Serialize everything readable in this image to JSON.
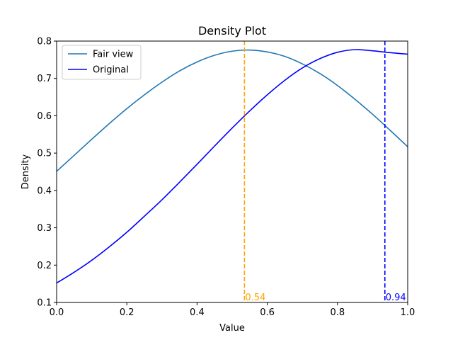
{
  "chart_data": {
    "type": "line",
    "title": "Density Plot",
    "xlabel": "Value",
    "ylabel": "Density",
    "xlim": [
      0,
      1
    ],
    "ylim": [
      0.1,
      0.8
    ],
    "xticks": [
      "0.0",
      "0.2",
      "0.4",
      "0.6",
      "0.8",
      "1.0"
    ],
    "yticks": [
      "0.1",
      "0.2",
      "0.3",
      "0.4",
      "0.5",
      "0.6",
      "0.7",
      "0.8"
    ],
    "grid": false,
    "legend_position": "top-left",
    "x": [
      0.0,
      0.05,
      0.1,
      0.15,
      0.2,
      0.25,
      0.3,
      0.35,
      0.4,
      0.45,
      0.5,
      0.55,
      0.6,
      0.65,
      0.7,
      0.75,
      0.8,
      0.85,
      0.9,
      0.95,
      1.0
    ],
    "series": [
      {
        "name": "Fair view",
        "color": "#1f77b4",
        "values": [
          0.451,
          0.494,
          0.537,
          0.579,
          0.619,
          0.656,
          0.69,
          0.72,
          0.744,
          0.762,
          0.773,
          0.776,
          0.771,
          0.759,
          0.739,
          0.713,
          0.681,
          0.644,
          0.604,
          0.561,
          0.517
        ]
      },
      {
        "name": "Original",
        "color": "#0000ff",
        "values": [
          0.152,
          0.181,
          0.213,
          0.249,
          0.288,
          0.331,
          0.375,
          0.422,
          0.47,
          0.519,
          0.567,
          0.613,
          0.656,
          0.695,
          0.728,
          0.753,
          0.77,
          0.777,
          0.774,
          0.769,
          0.765
        ]
      }
    ],
    "vlines": [
      {
        "x": 0.535,
        "label": "0.54",
        "color": "#ffa500"
      },
      {
        "x": 0.935,
        "label": "0.94",
        "color": "#0000ff"
      }
    ]
  }
}
